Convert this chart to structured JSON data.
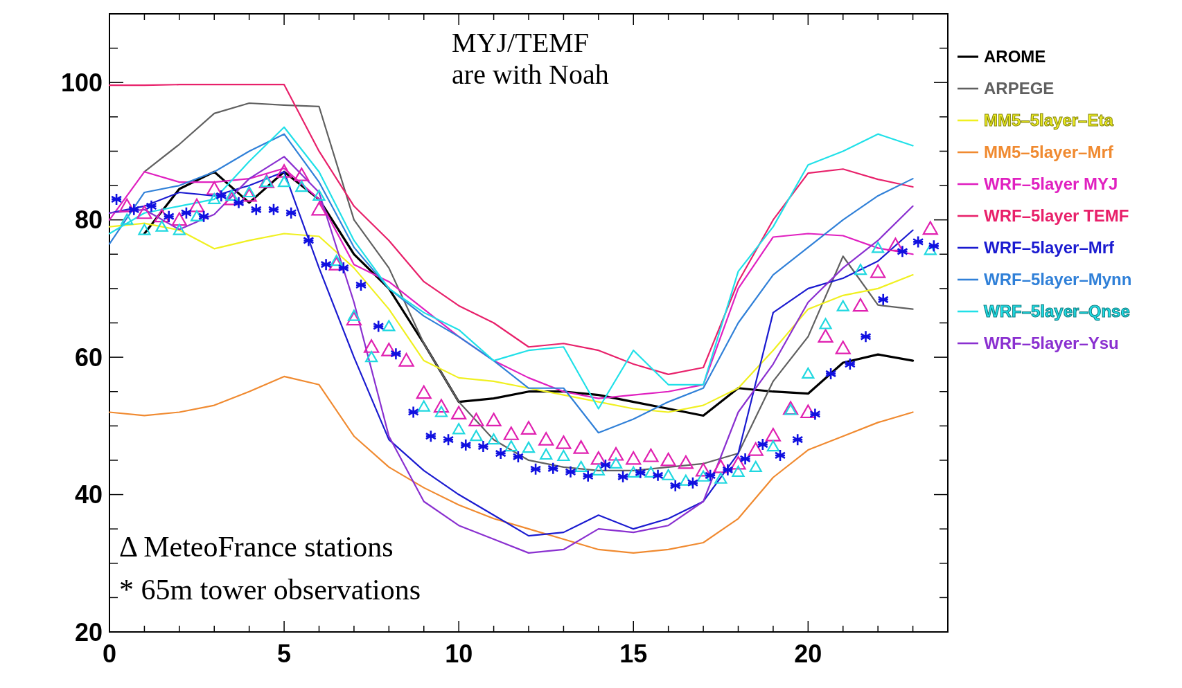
{
  "chart_data": {
    "type": "line",
    "x": [
      0,
      1,
      2,
      3,
      4,
      5,
      6,
      7,
      8,
      9,
      10,
      11,
      12,
      13,
      14,
      15,
      16,
      17,
      18,
      19,
      20,
      21,
      22,
      23
    ],
    "xlim": [
      0,
      24
    ],
    "xticks": [
      0,
      {
        "value": 1,
        "label": null
      },
      {
        "value": 2,
        "label": null
      },
      {
        "value": 3,
        "label": null
      },
      {
        "value": 4,
        "label": null
      },
      5,
      {
        "value": 6,
        "label": null
      },
      {
        "value": 7,
        "label": null
      },
      {
        "value": 8,
        "label": null
      },
      {
        "value": 9,
        "label": null
      },
      10,
      {
        "value": 11,
        "label": null
      },
      {
        "value": 12,
        "label": null
      },
      {
        "value": 13,
        "label": null
      },
      {
        "value": 14,
        "label": null
      },
      15,
      {
        "value": 16,
        "label": null
      },
      {
        "value": 17,
        "label": null
      },
      {
        "value": 18,
        "label": null
      },
      {
        "value": 19,
        "label": null
      },
      20,
      {
        "value": 21,
        "label": null
      },
      {
        "value": 22,
        "label": null
      },
      {
        "value": 23,
        "label": null
      }
    ],
    "ylim": [
      20,
      110
    ],
    "yticks": [
      20,
      {
        "value": 25,
        "label": null
      },
      {
        "value": 30,
        "label": null
      },
      {
        "value": 35,
        "label": null
      },
      40,
      {
        "value": 45,
        "label": null
      },
      {
        "value": 50,
        "label": null
      },
      {
        "value": 55,
        "label": null
      },
      60,
      {
        "value": 65,
        "label": null
      },
      {
        "value": 70,
        "label": null
      },
      {
        "value": 75,
        "label": null
      },
      80,
      {
        "value": 85,
        "label": null
      },
      {
        "value": 90,
        "label": null
      },
      {
        "value": 95,
        "label": null
      },
      100,
      {
        "value": 105,
        "label": null
      }
    ],
    "legend": "right",
    "annotations": [
      "MYJ/TEMF\nare with Noah",
      "Δ MeteoFrance stations",
      "* 65m tower observations"
    ],
    "series": [
      {
        "name": "AROME",
        "color": "#000000",
        "values": [
          null,
          78,
          84.5,
          87,
          82.5,
          87,
          83,
          75,
          70,
          62,
          53.5,
          54,
          55,
          55,
          54.5,
          53.5,
          52.5,
          51.5,
          55.5,
          55,
          54.7,
          59.2,
          60.4,
          59.5
        ]
      },
      {
        "name": "ARPEGE",
        "color": "#606060",
        "values": [
          null,
          87,
          91,
          95.5,
          97,
          96.7,
          96.5,
          80,
          73,
          62,
          53.5,
          48,
          45,
          44,
          43.5,
          43.5,
          44,
          44.5,
          46,
          56.5,
          63,
          74.7,
          67.6,
          67
        ]
      },
      {
        "name": "MM5–5layer–Eta",
        "color": "#f0f020",
        "values": [
          79,
          79.5,
          78.5,
          75.8,
          77,
          78,
          77.6,
          73,
          67,
          59.5,
          57,
          56.5,
          55.5,
          54.5,
          53.5,
          52.5,
          52,
          53,
          55.5,
          61,
          67,
          69,
          70,
          72
        ]
      },
      {
        "name": "MM5–5layer–Mrf",
        "color": "#f08a30",
        "values": [
          52,
          51.5,
          52,
          53,
          55,
          57.2,
          56,
          48.5,
          44,
          41,
          38.5,
          36.5,
          35,
          33.5,
          32,
          31.5,
          32,
          33,
          36.5,
          42.5,
          46.5,
          48.5,
          50.5,
          52
        ]
      },
      {
        "name": "WRF–5layer MYJ",
        "color": "#e020c0",
        "values": [
          80,
          87,
          85.5,
          85.5,
          86,
          87.5,
          83,
          73.5,
          71,
          67,
          63,
          59.5,
          57,
          55,
          54,
          54.5,
          55,
          56,
          70,
          77.5,
          78,
          77.7,
          75.9,
          75
        ]
      },
      {
        "name": "WRF–5layer TEMF",
        "color": "#e8206a",
        "values": [
          99.6,
          99.6,
          99.7,
          99.7,
          99.7,
          99.7,
          90,
          82,
          77,
          71,
          67.5,
          65,
          61.5,
          62,
          61,
          59,
          57.5,
          58.5,
          71,
          80,
          86.8,
          87.4,
          85.9,
          84.8
        ]
      },
      {
        "name": "WRF–5layer–Mrf",
        "color": "#1a1ad0",
        "values": [
          81,
          82,
          84,
          83.5,
          85,
          87,
          73,
          60,
          48,
          43.5,
          40,
          37,
          34,
          34.5,
          37,
          35,
          36.5,
          39,
          46,
          66.5,
          70,
          71.5,
          74,
          78.5
        ]
      },
      {
        "name": "WRF–5layer–Mynn",
        "color": "#3080d8",
        "values": [
          76.5,
          84,
          85,
          87,
          90,
          92.5,
          85.5,
          76,
          70,
          66,
          63,
          59.5,
          55.5,
          55.5,
          49,
          51,
          53.5,
          55.5,
          65,
          72,
          76,
          80,
          83.5,
          86
        ]
      },
      {
        "name": "WRF–5layer–Qnse",
        "color": "#20e0e8",
        "values": [
          78,
          81,
          82,
          83,
          88.5,
          93.5,
          87,
          77,
          70,
          66.5,
          64,
          59.5,
          61,
          61.5,
          52.5,
          61,
          56,
          56,
          72.5,
          79,
          88,
          90,
          92.5,
          90.8
        ]
      },
      {
        "name": "WRF–5layer–Ysu",
        "color": "#8a30d0",
        "values": [
          81,
          81.5,
          78.6,
          80.8,
          86,
          89.2,
          84,
          68,
          48.5,
          39,
          35.5,
          33.5,
          31.5,
          32,
          35,
          34.5,
          35.5,
          39,
          52,
          59,
          68,
          73,
          77,
          82
        ]
      },
      {
        "type": "scatter",
        "marker": "triangle",
        "color": "#e020b0",
        "x": [
          0.5,
          1,
          1.5,
          2,
          2.5,
          3,
          3.5,
          4,
          4.5,
          5,
          5.5,
          6,
          6.5,
          7,
          7.5,
          8,
          8.5,
          9,
          9.5,
          10,
          10.5,
          11,
          11.5,
          12,
          12.5,
          13,
          13.5,
          14,
          14.5,
          15,
          15.5,
          16,
          16.5,
          17,
          17.5,
          18,
          18.5,
          19,
          19.5,
          20,
          20.5,
          21,
          21.5,
          22,
          22.5,
          23.5
        ],
        "values": [
          82,
          81,
          80.5,
          80,
          82,
          84.5,
          83,
          83.5,
          85.5,
          87,
          86.5,
          81.5,
          73.5,
          65.5,
          61.5,
          61,
          59.5,
          54.8,
          52.8,
          51.8,
          50.8,
          50.8,
          48.8,
          49.6,
          48,
          47.5,
          46.8,
          45.2,
          45.8,
          45.2,
          45.6,
          45,
          44.6,
          43.5,
          44,
          44.5,
          46.5,
          48.6,
          52.5,
          52,
          63,
          61.3,
          67.5,
          72.4,
          76.3,
          78.7
        ]
      },
      {
        "type": "scatter",
        "marker": "triangle",
        "color": "#20d8e0",
        "x": [
          0.5,
          1,
          1.5,
          2,
          2.5,
          3,
          3.5,
          4,
          4.5,
          5,
          5.5,
          6,
          6.5,
          7,
          7.5,
          8,
          9,
          9.5,
          10,
          10.5,
          11,
          11.5,
          12,
          12.5,
          13,
          13.5,
          14,
          14.5,
          15,
          15.5,
          16,
          16.5,
          17,
          17.5,
          18,
          18.5,
          19,
          19.5,
          20,
          20.5,
          21,
          21.5,
          22,
          23.5
        ],
        "values": [
          80,
          78.5,
          79,
          78.5,
          80.5,
          83,
          83.5,
          84,
          85.5,
          85.5,
          84.8,
          83.5,
          74,
          66,
          60,
          64.5,
          52.8,
          52,
          49.5,
          48.5,
          48,
          47,
          46.8,
          45.8,
          45.6,
          44,
          43.5,
          44.5,
          43.2,
          43.2,
          42.8,
          42,
          42.6,
          42.3,
          43.3,
          44,
          47,
          52.3,
          57.6,
          64.8,
          67.4,
          72.7,
          75.9,
          75.6
        ]
      },
      {
        "type": "scatter",
        "marker": "cross",
        "color": "#1010e0",
        "x": [
          0.2,
          0.7,
          1.2,
          1.7,
          2.2,
          2.7,
          3.2,
          3.7,
          4.2,
          4.7,
          5.2,
          5.7,
          6.2,
          6.7,
          7.2,
          7.7,
          8.2,
          8.7,
          9.2,
          9.7,
          10.2,
          10.7,
          11.2,
          11.7,
          12.2,
          12.7,
          13.2,
          13.7,
          14.2,
          14.7,
          15.2,
          15.7,
          16.2,
          16.7,
          17.2,
          17.7,
          18.2,
          18.7,
          19.2,
          19.7,
          20.2,
          20.65,
          21.2,
          21.65,
          22.15,
          22.7,
          23.15,
          23.6
        ],
        "values": [
          83,
          81.5,
          82,
          80.5,
          81,
          80.5,
          83.5,
          82.5,
          81.5,
          81.5,
          81,
          77,
          73.5,
          73,
          70.5,
          64.5,
          60.5,
          52,
          48.5,
          48,
          47.2,
          47,
          46,
          45.5,
          43.7,
          43.8,
          43.3,
          42.7,
          44.3,
          42.6,
          43.2,
          42.8,
          41.3,
          41.7,
          42.8,
          43.6,
          45.2,
          47.3,
          45.7,
          48,
          51.7,
          57.6,
          59,
          63,
          68.4,
          75.4,
          76.8,
          76.2
        ]
      }
    ]
  }
}
